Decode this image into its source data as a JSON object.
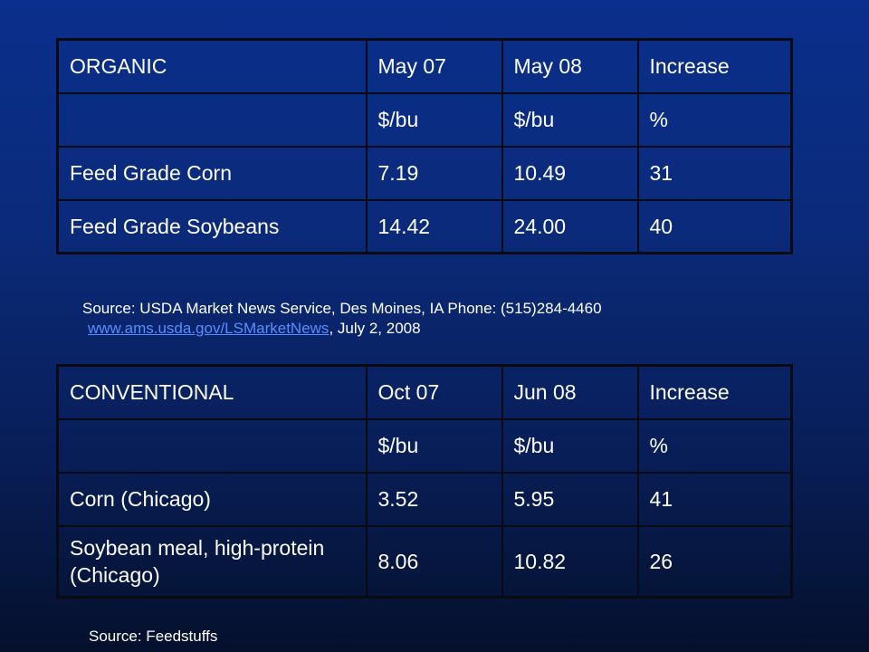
{
  "organic_table": {
    "header": [
      "ORGANIC",
      "May 07",
      "May 08",
      "Increase"
    ],
    "units": [
      "",
      "$/bu",
      "$/bu",
      "%"
    ],
    "rows": [
      [
        "Feed Grade Corn",
        "7.19",
        "10.49",
        "31"
      ],
      [
        "Feed Grade Soybeans",
        "14.42",
        "24.00",
        "40"
      ]
    ]
  },
  "source_usda": {
    "line1": "Source: USDA Market News Service, Des Moines, IA Phone: (515)284-4460",
    "link": "www.ams.usda.gov/LSMarketNews",
    "suffix": ", July 2, 2008"
  },
  "conventional_table": {
    "header": [
      "CONVENTIONAL",
      "Oct 07",
      "Jun 08",
      "Increase"
    ],
    "units": [
      "",
      "$/bu",
      "$/bu",
      "%"
    ],
    "rows": [
      [
        "Corn (Chicago)",
        "3.52",
        "5.95",
        "41"
      ],
      [
        "Soybean meal, high-protein (Chicago)",
        "8.06",
        "10.82",
        "26"
      ]
    ]
  },
  "source_feedstuffs": "Source: Feedstuffs",
  "colors": {
    "background_top": "#0a2f8c",
    "background_bottom": "#05102c",
    "text": "#ffffff",
    "link": "#5b8cff",
    "grid_lines": "#0a0a12"
  }
}
